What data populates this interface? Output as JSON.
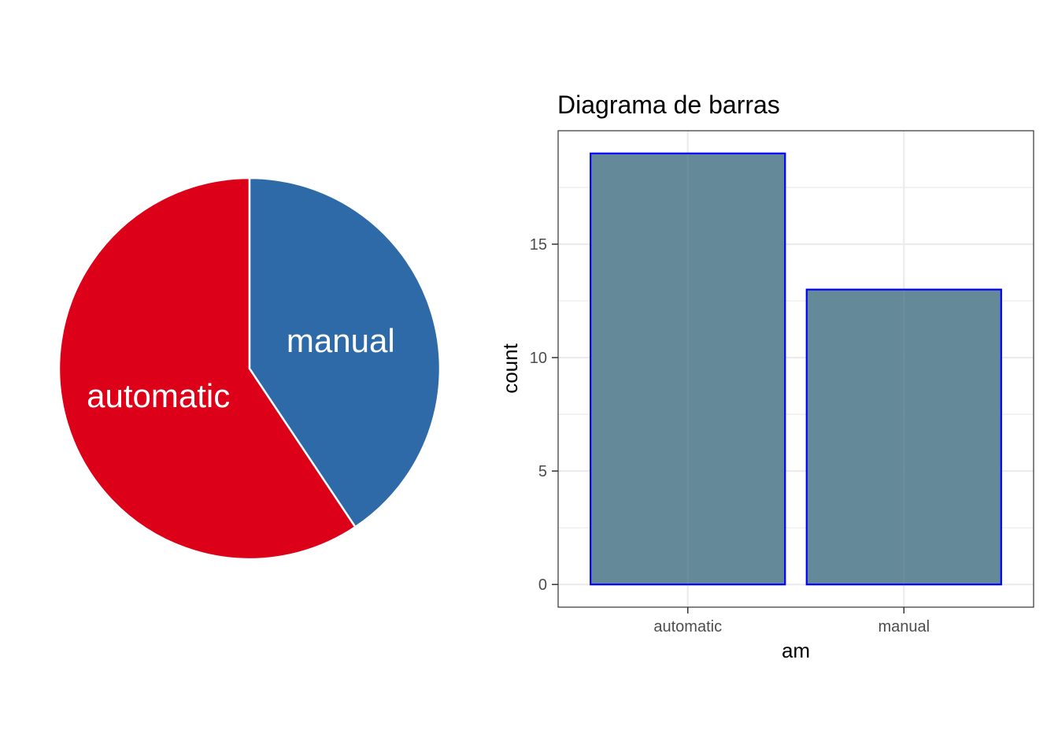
{
  "chart_data": [
    {
      "type": "pie",
      "labels": [
        "automatic",
        "manual"
      ],
      "values": [
        19,
        13
      ],
      "colors": [
        "#DC0018",
        "#2E6AA8"
      ],
      "slice_border_color": "#ffffff",
      "start": "12 o'clock",
      "direction": "counterclockwise for automatic, clockwise for manual"
    },
    {
      "type": "bar",
      "title": "Diagrama de barras",
      "categories": [
        "automatic",
        "manual"
      ],
      "values": [
        19,
        13
      ],
      "xlabel": "am",
      "ylabel": "count",
      "ylim": [
        -1,
        20
      ],
      "yticks": [
        0,
        5,
        10,
        15
      ],
      "grid": true,
      "bar_fill": "#5C8394",
      "bar_border": "#0000FF",
      "panel_border": "#333333"
    }
  ]
}
